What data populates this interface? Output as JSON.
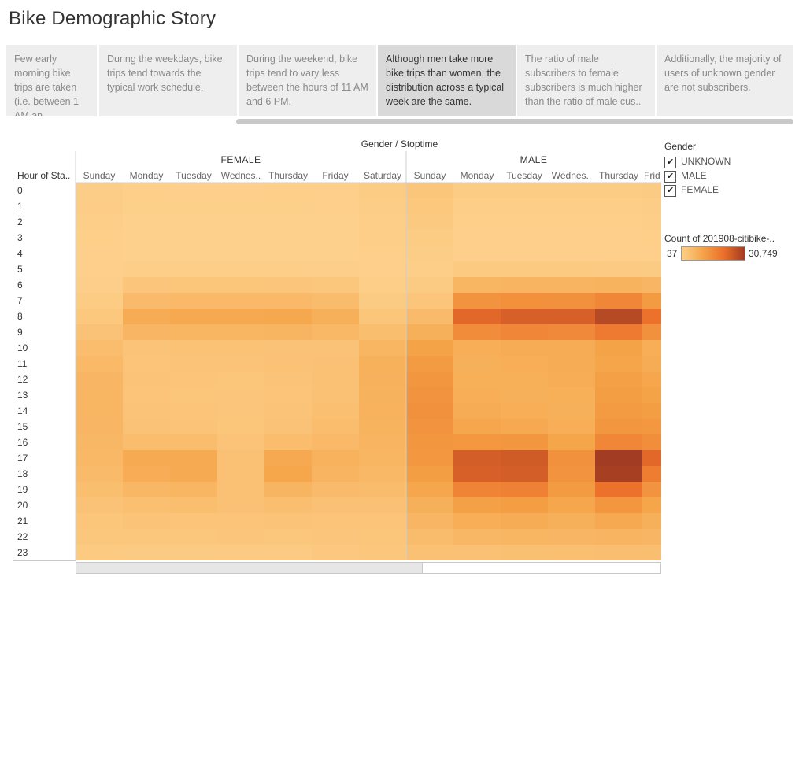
{
  "page": {
    "title": "Bike Demographic Story"
  },
  "story_points": [
    "Few early morning bike trips are taken (i.e. between 1 AM an..",
    "During the weekdays, bike trips tend towards the typical work schedule.",
    "During the weekend, bike trips tend to vary less between the hours of 11 AM and 6 PM.",
    "Although men take more bike trips than women, the distribution across a typical week are the same.",
    "The ratio of male subscribers to female subscribers is much higher than the ratio of male cus..",
    "Additionally, the majority of users of unknown gender are not subscribers."
  ],
  "active_story_point": 3,
  "legend": {
    "title": "Gender",
    "items": [
      "UNKNOWN",
      "MALE",
      "FEMALE"
    ],
    "color_title": "Count of 201908-citibike-..",
    "color_min": "37",
    "color_max": "30,749",
    "colors": [
      "#fdd08b",
      "#f5a448",
      "#ec6f2a",
      "#a23c22"
    ]
  },
  "chart_data": {
    "type": "heatmap",
    "title": "Gender / Stoptime",
    "row_header": "Hour of Sta..",
    "rows": [
      "0",
      "1",
      "2",
      "3",
      "4",
      "5",
      "6",
      "7",
      "8",
      "9",
      "10",
      "11",
      "12",
      "13",
      "14",
      "15",
      "16",
      "17",
      "18",
      "19",
      "20",
      "21",
      "22",
      "23"
    ],
    "column_groups": [
      {
        "name": "FEMALE",
        "columns": [
          "Sunday",
          "Monday",
          "Tuesday",
          "Wednes..",
          "Thursday",
          "Friday",
          "Saturday"
        ]
      },
      {
        "name": "MALE",
        "columns": [
          "Sunday",
          "Monday",
          "Tuesday",
          "Wednes..",
          "Thursday",
          "Frid"
        ]
      }
    ],
    "color_range": [
      37,
      30749
    ],
    "values": {
      "FEMALE": [
        [
          800,
          300,
          250,
          260,
          280,
          320,
          900
        ],
        [
          650,
          150,
          130,
          140,
          150,
          170,
          750
        ],
        [
          500,
          80,
          70,
          75,
          80,
          90,
          600
        ],
        [
          350,
          50,
          40,
          45,
          50,
          55,
          450
        ],
        [
          250,
          60,
          55,
          55,
          60,
          60,
          300
        ],
        [
          200,
          450,
          420,
          430,
          420,
          400,
          250
        ],
        [
          400,
          2500,
          2600,
          2600,
          2500,
          2200,
          600
        ],
        [
          900,
          5000,
          5300,
          5300,
          5300,
          4600,
          1300
        ],
        [
          2000,
          8500,
          9000,
          9000,
          9400,
          7500,
          2600
        ],
        [
          3300,
          6000,
          6300,
          6300,
          6400,
          5700,
          4300
        ],
        [
          4500,
          3000,
          3200,
          3200,
          3300,
          3300,
          6300
        ],
        [
          5500,
          2900,
          3000,
          3100,
          3200,
          3600,
          7300
        ],
        [
          6000,
          3000,
          2800,
          2600,
          3000,
          3700,
          7200
        ],
        [
          6200,
          2900,
          2600,
          2400,
          2900,
          3700,
          7100
        ],
        [
          6200,
          3100,
          2900,
          2500,
          3100,
          4000,
          7000
        ],
        [
          6000,
          3300,
          3100,
          2600,
          3300,
          4400,
          6700
        ],
        [
          5900,
          4400,
          4500,
          3000,
          4500,
          5300,
          6500
        ],
        [
          5700,
          8600,
          8800,
          3600,
          9000,
          7000,
          6300
        ],
        [
          5200,
          8300,
          8600,
          3500,
          9600,
          6500,
          5700
        ],
        [
          4300,
          5800,
          6100,
          3600,
          6400,
          4900,
          4600
        ],
        [
          3300,
          4100,
          4300,
          3500,
          4200,
          3600,
          3600
        ],
        [
          2700,
          3000,
          2900,
          2900,
          3000,
          2900,
          2900
        ],
        [
          2100,
          2200,
          2200,
          2300,
          2200,
          2400,
          2600
        ],
        [
          1500,
          1200,
          1300,
          1400,
          1400,
          1900,
          2200
        ]
      ],
      "MALE": [
        [
          2600,
          1100,
          1000,
          1000,
          1100,
          1300
        ],
        [
          2000,
          600,
          500,
          550,
          600,
          700
        ],
        [
          1600,
          350,
          300,
          320,
          350,
          420
        ],
        [
          1100,
          220,
          200,
          210,
          220,
          270
        ],
        [
          800,
          250,
          230,
          230,
          240,
          260
        ],
        [
          600,
          1500,
          1500,
          1500,
          1400,
          1300
        ],
        [
          1200,
          6200,
          6600,
          6600,
          6800,
          6000
        ],
        [
          2500,
          13500,
          14200,
          14000,
          16000,
          12000
        ],
        [
          5000,
          22000,
          23500,
          23500,
          28000,
          20000
        ],
        [
          7500,
          15000,
          16000,
          15500,
          18500,
          14000
        ],
        [
          10500,
          8000,
          8500,
          8500,
          10500,
          8000
        ],
        [
          12000,
          7500,
          8000,
          8500,
          10000,
          8500
        ],
        [
          13000,
          7800,
          7800,
          8200,
          11000,
          9500
        ],
        [
          13500,
          8000,
          7500,
          7800,
          11500,
          10500
        ],
        [
          14000,
          8500,
          8000,
          7500,
          12000,
          11500
        ],
        [
          13500,
          9500,
          9000,
          8000,
          13000,
          12500
        ],
        [
          13000,
          12500,
          13000,
          10000,
          16000,
          14500
        ],
        [
          12500,
          24000,
          24500,
          14000,
          30749,
          22000
        ],
        [
          11500,
          23500,
          24000,
          13500,
          30000,
          18000
        ],
        [
          9500,
          16500,
          17000,
          12000,
          20000,
          13500
        ],
        [
          7500,
          11000,
          11500,
          9500,
          13000,
          10000
        ],
        [
          6000,
          8000,
          8500,
          7500,
          9000,
          7500
        ],
        [
          4800,
          5800,
          6200,
          6000,
          6500,
          6000
        ],
        [
          3500,
          3500,
          3800,
          4000,
          4200,
          4200
        ]
      ]
    }
  }
}
